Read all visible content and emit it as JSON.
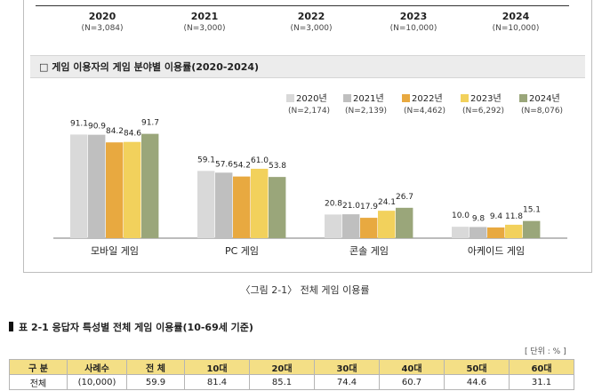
{
  "timeline": [
    {
      "year": "2020",
      "n": "(N=3,084)"
    },
    {
      "year": "2021",
      "n": "(N=3,000)"
    },
    {
      "year": "2022",
      "n": "(N=3,000)"
    },
    {
      "year": "2023",
      "n": "(N=10,000)"
    },
    {
      "year": "2024",
      "n": "(N=10,000)"
    }
  ],
  "section_title": "□  게임 이용자의 게임 분야별 이용률(2020-2024)",
  "legend": [
    {
      "label": "2020년",
      "n": "(N=2,174)",
      "color": "#d9d9d9"
    },
    {
      "label": "2021년",
      "n": "(N=2,139)",
      "color": "#bfbfbf"
    },
    {
      "label": "2022년",
      "n": "(N=4,462)",
      "color": "#e8a940"
    },
    {
      "label": "2023년",
      "n": "(N=6,292)",
      "color": "#f2d15c"
    },
    {
      "label": "2024년",
      "n": "(N=8,076)",
      "color": "#9aa67a"
    }
  ],
  "chart_data": {
    "type": "bar",
    "title": "게임 이용자의 게임 분야별 이용률(2020-2024)",
    "categories": [
      "모바일 게임",
      "PC 게임",
      "콘솔 게임",
      "아케이드 게임"
    ],
    "series": [
      {
        "name": "2020년",
        "values": [
          91.1,
          59.1,
          20.8,
          10.0
        ]
      },
      {
        "name": "2021년",
        "values": [
          90.9,
          57.6,
          21.0,
          9.8
        ]
      },
      {
        "name": "2022년",
        "values": [
          84.2,
          54.2,
          17.9,
          9.4
        ]
      },
      {
        "name": "2023년",
        "values": [
          84.6,
          61.0,
          24.1,
          11.8
        ]
      },
      {
        "name": "2024년",
        "values": [
          91.7,
          53.8,
          26.7,
          15.1
        ]
      }
    ],
    "value_labels": [
      [
        "91.1",
        "59.1",
        "20.8",
        "10.0"
      ],
      [
        "90.9",
        "57.6",
        "21.0",
        "9.8"
      ],
      [
        "84.2",
        "54.2",
        "17.9",
        "9.4"
      ],
      [
        "84.6",
        "61.0",
        "24.1",
        "11.8"
      ],
      [
        "91.7",
        "53.8",
        "26.7",
        "15.1"
      ]
    ],
    "ylim": [
      0,
      100
    ],
    "xlabel": "",
    "ylabel": ""
  },
  "caption": "〈그림 2-1〉 전체 게임 이용률",
  "table_title": "표 2-1 응답자 특성별 전체 게임 이용률(10-69세 기준)",
  "unit": "[ 단위 : % ]",
  "table": {
    "headers": [
      "구 분",
      "사례수",
      "전 체",
      "10대",
      "20대",
      "30대",
      "40대",
      "50대",
      "60대"
    ],
    "row": [
      "전체",
      "(10,000)",
      "59.9",
      "81.4",
      "85.1",
      "74.4",
      "60.7",
      "44.6",
      "31.1"
    ]
  }
}
